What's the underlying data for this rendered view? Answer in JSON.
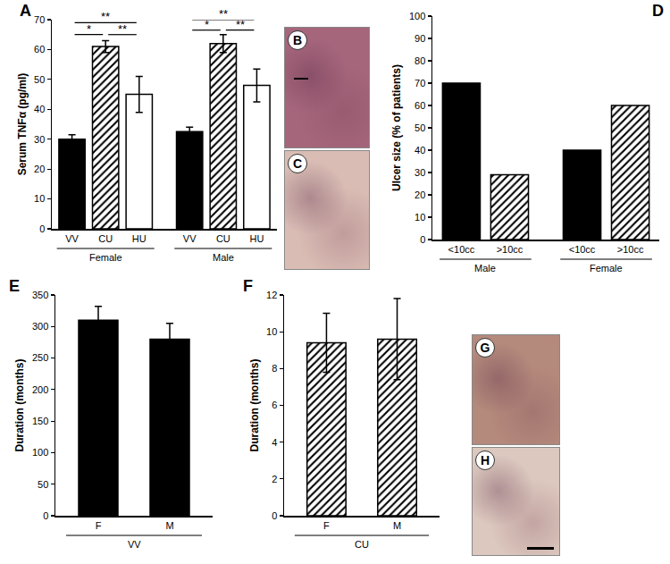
{
  "chart_data": [
    {
      "panel": "A",
      "type": "bar",
      "categories": [
        "VV",
        "CU",
        "HU",
        "VV",
        "CU",
        "HU"
      ],
      "groups": [
        "Female",
        "Female",
        "Female",
        "Male",
        "Male",
        "Male"
      ],
      "ylabel": "Serum TNFα (pg/ml)",
      "ylim": [
        0,
        70
      ],
      "yticks": [
        0,
        10,
        20,
        30,
        40,
        50,
        60,
        70
      ],
      "grid": false,
      "series": [
        {
          "color": "#000000",
          "marker": "solid",
          "values": [
            30,
            null,
            null,
            32.5,
            null,
            null
          ],
          "errors": [
            1.5,
            null,
            null,
            1.5,
            null,
            null
          ]
        },
        {
          "color": "#ffffff",
          "marker": "hatched",
          "values": [
            null,
            61,
            null,
            null,
            62,
            null
          ],
          "errors": [
            null,
            2,
            null,
            null,
            3,
            null
          ]
        },
        {
          "color": "#ffffff",
          "marker": "solid",
          "values": [
            null,
            null,
            45,
            null,
            null,
            48
          ],
          "errors": [
            null,
            null,
            6,
            null,
            null,
            5.5
          ]
        }
      ],
      "annotations": [
        {
          "text": "*",
          "from": 0,
          "to": 1,
          "y": 65
        },
        {
          "text": "**",
          "from": 1,
          "to": 2,
          "y": 65
        },
        {
          "text": "**",
          "from": 0,
          "to": 2,
          "y": 69
        },
        {
          "text": "*",
          "from": 3,
          "to": 4,
          "y": 66.5
        },
        {
          "text": "**",
          "from": 4,
          "to": 5,
          "y": 66.5
        },
        {
          "text": "**",
          "from": 3,
          "to": 5,
          "y": 70
        }
      ]
    },
    {
      "panel": "D",
      "type": "bar",
      "categories": [
        "<10cc",
        ">10cc",
        "<10cc",
        ">10cc"
      ],
      "groups": [
        "Male",
        "Male",
        "Female",
        "Female"
      ],
      "ylabel": "Ulcer size (% of patients)",
      "ylim": [
        0,
        100
      ],
      "yticks": [
        0,
        10,
        20,
        30,
        40,
        50,
        60,
        70,
        80,
        90,
        100
      ],
      "grid": false,
      "series": [
        {
          "color": "#000000",
          "marker": "solid",
          "values": [
            70,
            null,
            40,
            null
          ]
        },
        {
          "color": "#ffffff",
          "marker": "hatched",
          "values": [
            null,
            29,
            null,
            60
          ]
        }
      ]
    },
    {
      "panel": "E",
      "type": "bar",
      "categories": [
        "F",
        "M"
      ],
      "groups": [
        "VV",
        "VV"
      ],
      "ylabel": "Duration (months)",
      "ylim": [
        0,
        350
      ],
      "yticks": [
        0,
        50,
        100,
        150,
        200,
        250,
        300,
        350
      ],
      "grid": false,
      "series": [
        {
          "color": "#000000",
          "marker": "solid",
          "values": [
            310,
            280
          ],
          "errors": [
            22,
            25
          ]
        }
      ]
    },
    {
      "panel": "F",
      "type": "bar",
      "categories": [
        "F",
        "M"
      ],
      "groups": [
        "CU",
        "CU"
      ],
      "ylabel": "Duration (months)",
      "ylim": [
        0,
        12
      ],
      "yticks": [
        0,
        2,
        4,
        6,
        8,
        10,
        12
      ],
      "grid": false,
      "series": [
        {
          "color": "#ffffff",
          "marker": "hatched",
          "values": [
            9.4,
            9.6
          ],
          "errors": [
            1.6,
            2.2
          ]
        }
      ]
    }
  ],
  "images": [
    {
      "panel": "B",
      "color": "#a5667c"
    },
    {
      "panel": "C",
      "color": "#d9bcb4"
    },
    {
      "panel": "G",
      "color": "#b48a7c"
    },
    {
      "panel": "H",
      "color": "#dcc8be"
    }
  ]
}
